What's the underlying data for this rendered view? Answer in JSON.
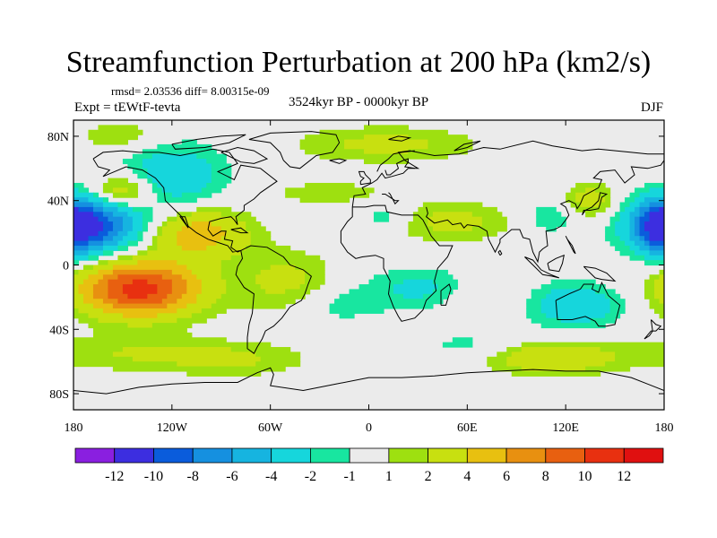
{
  "title": "Streamfunction Perturbation at 200 hPa (km2/s)",
  "stats": "rmsd= 2.03536 diff= 8.00315e-09",
  "experiment": "Expt = tEWtF-tevta",
  "period": "3524kyr BP - 0000kyr BP",
  "season": "DJF",
  "colors": {
    "background": "#ebebeb",
    "coast": "#000000"
  },
  "chart_data": {
    "type": "heatmap",
    "title": "Streamfunction Perturbation at 200 hPa (km2/s)",
    "units": "km2/s",
    "projection": "cylindrical equidistant",
    "xlim": [
      -180,
      180
    ],
    "ylim": [
      -90,
      90
    ],
    "x_ticks": [
      {
        "value": -180,
        "label": "180"
      },
      {
        "value": -120,
        "label": "120W"
      },
      {
        "value": -60,
        "label": "60W"
      },
      {
        "value": 0,
        "label": "0"
      },
      {
        "value": 60,
        "label": "60E"
      },
      {
        "value": 120,
        "label": "120E"
      },
      {
        "value": 180,
        "label": "180"
      }
    ],
    "y_ticks": [
      {
        "value": 80,
        "label": "80N"
      },
      {
        "value": 40,
        "label": "40N"
      },
      {
        "value": 0,
        "label": "0"
      },
      {
        "value": -40,
        "label": "40S"
      },
      {
        "value": -80,
        "label": "80S"
      }
    ],
    "colorbar": {
      "labels": [
        "-12",
        "-10",
        "-8",
        "-6",
        "-4",
        "-2",
        "-1",
        "1",
        "2",
        "4",
        "6",
        "8",
        "10",
        "12"
      ],
      "colors": [
        "#8a1fe0",
        "#3c2ee0",
        "#0a5cdc",
        "#1590e0",
        "#16b4e0",
        "#16d6dc",
        "#18e6a0",
        "#ebebeb",
        "#9ee010",
        "#c8e010",
        "#e8c010",
        "#e89010",
        "#e86010",
        "#e83010",
        "#e01010"
      ]
    },
    "levels": [
      -10,
      -8,
      -6,
      -4,
      -2,
      -1,
      1,
      2,
      4,
      6,
      8,
      10
    ],
    "anomalies": [
      {
        "name": "N Pacific east",
        "lon": -170,
        "lat": 25,
        "amp": -10,
        "wlon": 22,
        "wlat": 12
      },
      {
        "name": "W Pacific",
        "lon": 178,
        "lat": 23,
        "amp": -6,
        "wlon": 10,
        "wlat": 12
      },
      {
        "name": "E Pacific south",
        "lon": -140,
        "lat": -15,
        "amp": 11,
        "wlon": 26,
        "wlat": 12
      },
      {
        "name": "N Pacific high",
        "lon": -150,
        "lat": 45,
        "amp": 5,
        "wlon": 14,
        "wlat": 8
      },
      {
        "name": "Mexico",
        "lon": -105,
        "lat": 20,
        "amp": 5.5,
        "wlon": 22,
        "wlat": 11
      },
      {
        "name": "N America",
        "lon": -120,
        "lat": 55,
        "amp": -3.5,
        "wlon": 24,
        "wlat": 16
      },
      {
        "name": "Arctic Pacific",
        "lon": -150,
        "lat": 80,
        "amp": 2,
        "wlon": 20,
        "wlat": 7
      },
      {
        "name": "N Atlantic",
        "lon": -25,
        "lat": 45,
        "amp": 1.5,
        "wlon": 30,
        "wlat": 6
      },
      {
        "name": "Arctic Atlantic",
        "lon": 10,
        "lat": 75,
        "amp": 2.5,
        "wlon": 40,
        "wlat": 8
      },
      {
        "name": "S America",
        "lon": -50,
        "lat": -10,
        "amp": 2.5,
        "wlon": 22,
        "wlat": 14
      },
      {
        "name": "S Atlantic",
        "lon": -20,
        "lat": -25,
        "amp": -1.5,
        "wlon": 18,
        "wlat": 9
      },
      {
        "name": "S Pacific band",
        "lon": -140,
        "lat": -55,
        "amp": 2,
        "wlon": 55,
        "wlat": 8
      },
      {
        "name": "S Pacific band 2",
        "lon": -80,
        "lat": -60,
        "amp": 1.5,
        "wlon": 30,
        "wlat": 7
      },
      {
        "name": "Middle East",
        "lon": 50,
        "lat": 27,
        "amp": 2.5,
        "wlon": 28,
        "wlat": 9
      },
      {
        "name": "N Africa trough",
        "lon": 10,
        "lat": 30,
        "amp": -2,
        "wlon": 12,
        "wlat": 6
      },
      {
        "name": "Indian Ocean",
        "lon": 35,
        "lat": -15,
        "amp": -2.5,
        "wlon": 28,
        "wlat": 10
      },
      {
        "name": "Indian Ocean south",
        "lon": 70,
        "lat": -20,
        "amp": 2,
        "wlon": 18,
        "wlat": 10
      },
      {
        "name": "Tibet",
        "lon": 110,
        "lat": 30,
        "amp": -2,
        "wlon": 12,
        "wlat": 8
      },
      {
        "name": "Japan",
        "lon": 135,
        "lat": 40,
        "amp": 3,
        "wlon": 12,
        "wlat": 8
      },
      {
        "name": "Australia",
        "lon": 125,
        "lat": -25,
        "amp": -3.5,
        "wlon": 22,
        "wlat": 10
      },
      {
        "name": "Southern Ocean",
        "lon": 110,
        "lat": -58,
        "amp": 3.5,
        "wlon": 28,
        "wlat": 7
      },
      {
        "name": "S Indian Ocean",
        "lon": 60,
        "lat": -50,
        "amp": -1.5,
        "wlon": 20,
        "wlat": 6
      }
    ]
  }
}
